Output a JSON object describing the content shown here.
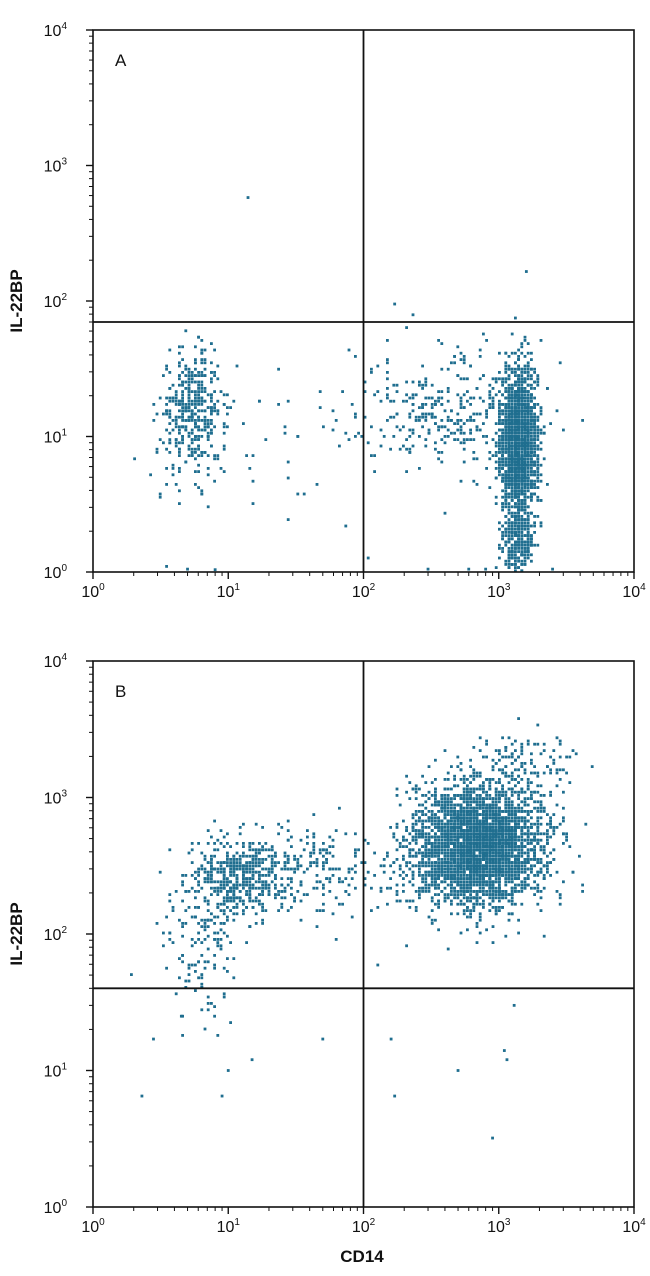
{
  "chart_data": [
    {
      "type": "scatter",
      "panel_label": "A",
      "scale": "log",
      "xlim": [
        1,
        10000
      ],
      "ylim": [
        1,
        10000
      ],
      "x_ticks": [
        {
          "base": "10",
          "exp": "0"
        },
        {
          "base": "10",
          "exp": "1"
        },
        {
          "base": "10",
          "exp": "2"
        },
        {
          "base": "10",
          "exp": "3"
        },
        {
          "base": "10",
          "exp": "4"
        }
      ],
      "y_ticks": [
        {
          "base": "10",
          "exp": "0"
        },
        {
          "base": "10",
          "exp": "1"
        },
        {
          "base": "10",
          "exp": "2"
        },
        {
          "base": "10",
          "exp": "3"
        },
        {
          "base": "10",
          "exp": "4"
        }
      ],
      "xlabel": "",
      "ylabel": "IL-22BP",
      "quadrant_gate": {
        "x": 100,
        "y": 70
      },
      "point_color": "#1f6e8f",
      "populations": [
        {
          "center": [
            5.5,
            15
          ],
          "count": 380,
          "spread_log": [
            0.12,
            0.22
          ]
        },
        {
          "center": [
            1400,
            9
          ],
          "count": 1700,
          "spread_log": [
            0.07,
            0.28
          ]
        },
        {
          "center": [
            1400,
            1.6
          ],
          "count": 220,
          "spread_log": [
            0.06,
            0.12
          ]
        },
        {
          "center": [
            400,
            16
          ],
          "count": 320,
          "spread_log": [
            0.35,
            0.22
          ]
        },
        {
          "center": [
            25,
            8
          ],
          "count": 50,
          "spread_log": [
            0.45,
            0.4
          ]
        }
      ],
      "points": [
        [
          14,
          580
        ],
        [
          1600,
          165
        ],
        [
          170,
          95
        ],
        [
          3.5,
          1.1
        ],
        [
          5,
          1.05
        ],
        [
          8,
          1.04
        ],
        [
          600,
          1.05
        ],
        [
          800,
          1.05
        ],
        [
          2500,
          1.05
        ],
        [
          300,
          1.05
        ]
      ]
    },
    {
      "type": "scatter",
      "panel_label": "B",
      "scale": "log",
      "xlim": [
        1,
        10000
      ],
      "ylim": [
        1,
        10000
      ],
      "x_ticks": [
        {
          "base": "10",
          "exp": "0"
        },
        {
          "base": "10",
          "exp": "1"
        },
        {
          "base": "10",
          "exp": "2"
        },
        {
          "base": "10",
          "exp": "3"
        },
        {
          "base": "10",
          "exp": "4"
        }
      ],
      "y_ticks": [
        {
          "base": "10",
          "exp": "0"
        },
        {
          "base": "10",
          "exp": "1"
        },
        {
          "base": "10",
          "exp": "2"
        },
        {
          "base": "10",
          "exp": "3"
        },
        {
          "base": "10",
          "exp": "4"
        }
      ],
      "xlabel": "CD14",
      "ylabel": "IL-22BP",
      "quadrant_gate": {
        "x": 100,
        "y": 40
      },
      "point_color": "#1f6e8f",
      "populations": [
        {
          "center": [
            700,
            450
          ],
          "count": 3200,
          "spread_log": [
            0.24,
            0.22
          ]
        },
        {
          "center": [
            11,
            260
          ],
          "count": 420,
          "spread_log": [
            0.18,
            0.15
          ]
        },
        {
          "center": [
            40,
            280
          ],
          "count": 220,
          "spread_log": [
            0.3,
            0.18
          ]
        },
        {
          "center": [
            6,
            80
          ],
          "count": 120,
          "spread_log": [
            0.15,
            0.25
          ]
        },
        {
          "center": [
            1500,
            1800
          ],
          "count": 120,
          "spread_log": [
            0.2,
            0.12
          ]
        }
      ],
      "points": [
        [
          2.3,
          6.5
        ],
        [
          10,
          10
        ],
        [
          15,
          12
        ],
        [
          9,
          6.5
        ],
        [
          50,
          17
        ],
        [
          160,
          17
        ],
        [
          170,
          6.5
        ],
        [
          500,
          10
        ],
        [
          1100,
          14
        ],
        [
          1150,
          12
        ],
        [
          900,
          3.2
        ],
        [
          1300,
          30
        ],
        [
          2.8,
          17
        ],
        [
          4.5,
          25
        ]
      ]
    }
  ]
}
